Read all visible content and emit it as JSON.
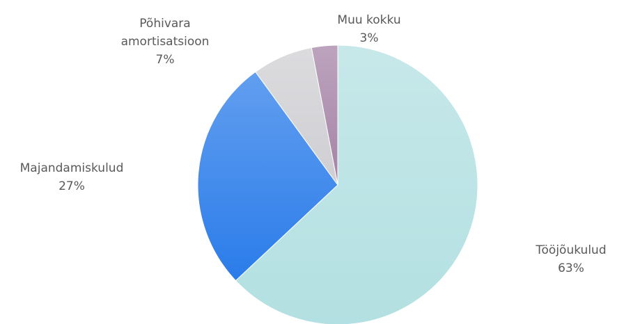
{
  "chart_data": {
    "type": "pie",
    "categories": [
      "Tööjõukulud",
      "Majandamiskulud",
      "Põhivara\namortisatsioon",
      "Muu kokku"
    ],
    "values": [
      63,
      27,
      7,
      3
    ],
    "value_labels": [
      "63%",
      "27%",
      "7%",
      "3%"
    ],
    "colors": [
      "#b3e0e2",
      "#2a7cea",
      "#cfcfd3",
      "#a583a6"
    ]
  }
}
